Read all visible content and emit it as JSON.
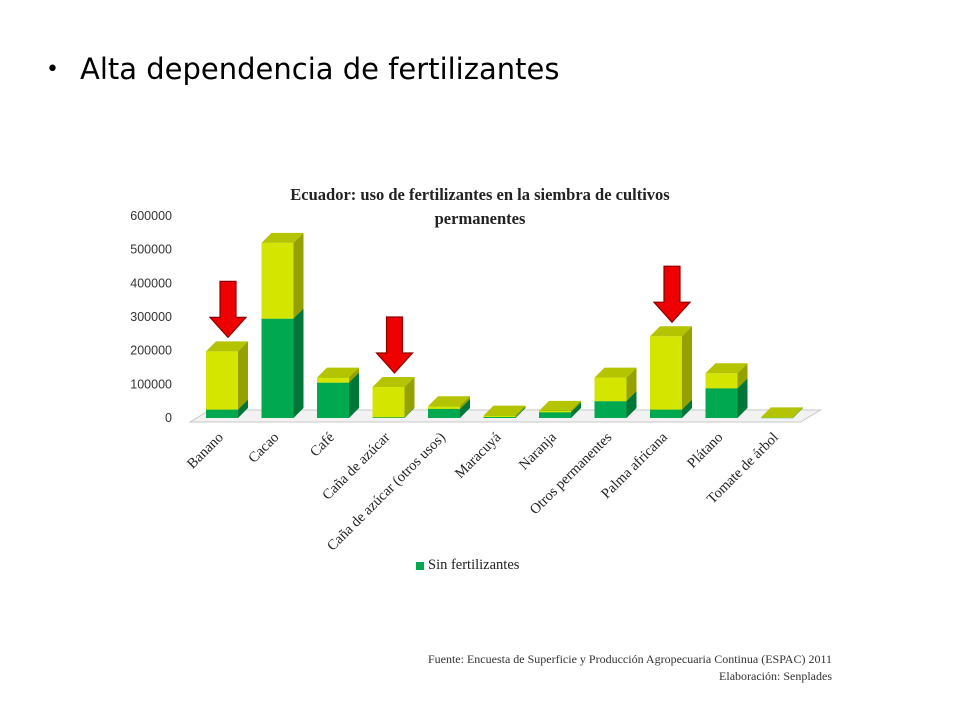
{
  "slide": {
    "bullet_symbol": "•",
    "bullet_text": "Alta dependencia de fertilizantes"
  },
  "colors": {
    "sin_fertilizantes": "#00a850",
    "con_fertilizantes": "#d4e600",
    "arrow": "#ee0000"
  },
  "chart_data": {
    "type": "bar",
    "stacked": true,
    "three_d": true,
    "title_line1": "Ecuador: uso de fertilizantes en la siembra de cultivos",
    "title_line2": "permanentes",
    "categories": [
      "Banano",
      "Cacao",
      "Café",
      "Caña de azúcar",
      "Caña de azúcar (otros usos)",
      "Maracuyá",
      "Naranja",
      "Otros permanentes",
      "Palma africana",
      "Plátano",
      "Tomate de árbol"
    ],
    "series": [
      {
        "name": "Sin fertilizantes",
        "values": [
          25000,
          295000,
          105000,
          2000,
          27000,
          3000,
          17000,
          50000,
          25000,
          88000,
          1000
        ]
      },
      {
        "name": "",
        "values": [
          173000,
          225000,
          15000,
          90000,
          8000,
          4000,
          4000,
          70000,
          218000,
          45000,
          1000
        ]
      }
    ],
    "y_ticks": [
      "0",
      "100000",
      "200000",
      "300000",
      "400000",
      "500000",
      "600000"
    ],
    "ylim": [
      0,
      600000
    ],
    "legend_position": "bottom",
    "highlighted_categories": [
      "Banano",
      "Caña de azúcar",
      "Palma africana"
    ]
  },
  "legend": {
    "label": "Sin fertilizantes"
  },
  "source": {
    "line1": "Fuente: Encuesta de Superficie y Producción Agropecuaria Continua (ESPAC) 2011",
    "line2": "Elaboración: Senplades"
  }
}
